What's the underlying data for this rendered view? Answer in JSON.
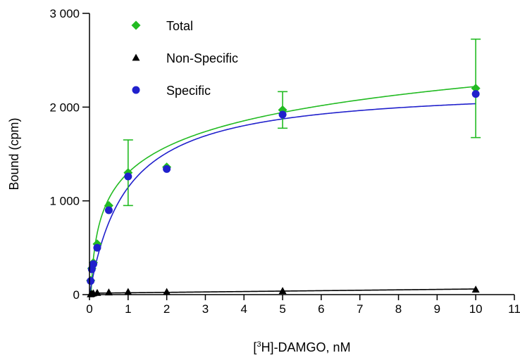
{
  "chart_data": {
    "type": "scatter",
    "title": "",
    "xlabel_pre": "[",
    "xlabel_sup": "3",
    "xlabel_post": "H]-DAMGO, nM",
    "ylabel": "Bound (cpm)",
    "xlim": [
      0,
      11
    ],
    "ylim": [
      0,
      3000
    ],
    "x_ticks": [
      0,
      1,
      2,
      3,
      4,
      5,
      6,
      7,
      8,
      9,
      10,
      11
    ],
    "x_tick_labels": [
      "0",
      "1",
      "2",
      "3",
      "4",
      "5",
      "6",
      "7",
      "8",
      "9",
      "10",
      "11"
    ],
    "y_ticks": [
      0,
      1000,
      2000,
      3000
    ],
    "y_tick_labels": [
      "0",
      "1 000",
      "2 000",
      "3 000"
    ],
    "grid": false,
    "legend_placement": "top-left",
    "series": [
      {
        "name": "Total",
        "marker": "diamond",
        "color": "#22bb22",
        "x": [
          0.03,
          0.06,
          0.1,
          0.2,
          0.5,
          1,
          2,
          5,
          10
        ],
        "y": [
          150,
          280,
          340,
          540,
          950,
          1300,
          1360,
          1970,
          2200
        ],
        "error": [
          0,
          0,
          0,
          0,
          0,
          350,
          0,
          195,
          525
        ],
        "fit": {
          "model": "log",
          "a": 1300,
          "b": 920
        }
      },
      {
        "name": "Non-Specific",
        "marker": "triangle",
        "color": "#000000",
        "x": [
          0.03,
          0.06,
          0.1,
          0.2,
          0.5,
          1,
          2,
          5,
          10
        ],
        "y": [
          5,
          10,
          15,
          20,
          25,
          30,
          30,
          40,
          55
        ],
        "error": [
          0,
          0,
          0,
          0,
          0,
          0,
          0,
          0,
          0
        ],
        "fit": {
          "model": "linear",
          "slope": 4.5,
          "intercept": 15
        }
      },
      {
        "name": "Specific",
        "marker": "circle",
        "color": "#2020cc",
        "x": [
          0.03,
          0.06,
          0.1,
          0.2,
          0.5,
          1,
          2,
          5,
          10
        ],
        "y": [
          145,
          270,
          325,
          500,
          900,
          1260,
          1340,
          1920,
          2140
        ],
        "error": [
          0,
          0,
          0,
          0,
          0,
          0,
          0,
          0,
          0
        ],
        "fit": {
          "model": "hyperbola",
          "bmax": 2230,
          "kd": 0.95
        }
      }
    ]
  }
}
